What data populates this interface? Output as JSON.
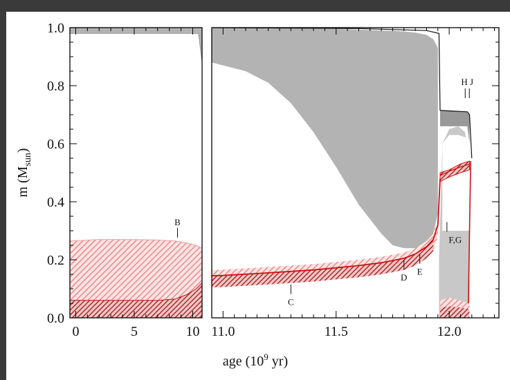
{
  "colors": {
    "background": "#3a3a3a",
    "convective_zone": "#b3b3b3",
    "burning_light": "#f0a5a5",
    "burning_dark": "#b01818",
    "core_line": "#cc1111",
    "frame": "#000000"
  },
  "chart_data": {
    "type": "area",
    "panels": [
      {
        "name": "left",
        "xlim": [
          -0.5,
          10.8
        ],
        "xticks": [
          0,
          5,
          10
        ],
        "xticklabels": [
          "0",
          "5",
          "10"
        ]
      },
      {
        "name": "right",
        "xlim": [
          10.95,
          12.22
        ],
        "xticks": [
          11.0,
          11.5,
          12.0
        ],
        "xticklabels": [
          "11.0",
          "11.5",
          "12.0"
        ]
      }
    ],
    "ylim": [
      0,
      1.0
    ],
    "yticks": [
      0.0,
      0.2,
      0.4,
      0.6,
      0.8,
      1.0
    ],
    "yticklabels": [
      "0.0",
      "0.2",
      "0.4",
      "0.6",
      "0.8",
      "1.0"
    ],
    "xlabel": {
      "pre": "age (10",
      "sup": "9",
      "post": " yr)"
    },
    "ylabel": {
      "pre": "m (M",
      "sub": "sun",
      "post": ")"
    },
    "annotations": [
      {
        "label": "B",
        "x": 8.7,
        "y": 0.31,
        "position": "above"
      },
      {
        "label": "C",
        "x": 11.3,
        "y": 0.115,
        "position": "below"
      },
      {
        "label": "D",
        "x": 11.8,
        "y": 0.2,
        "position": "below"
      },
      {
        "label": "E",
        "x": 11.87,
        "y": 0.22,
        "position": "below"
      },
      {
        "label": "F,G",
        "x": 11.99,
        "y": 0.33,
        "position": "below"
      },
      {
        "label": "H J",
        "x": 12.08,
        "y": 0.8,
        "position": "above"
      }
    ],
    "envelope_convection": {
      "x": [
        10.95,
        11.0,
        11.1,
        11.2,
        11.3,
        11.4,
        11.5,
        11.6,
        11.7,
        11.75,
        11.8,
        11.85,
        11.9,
        11.93,
        11.95
      ],
      "y_upper": [
        1.0,
        1.0,
        0.999,
        0.998,
        0.997,
        0.996,
        0.995,
        0.993,
        0.99,
        0.989,
        0.987,
        0.983,
        0.975,
        0.96,
        0.93
      ],
      "y_lower": [
        0.88,
        0.87,
        0.85,
        0.81,
        0.74,
        0.64,
        0.52,
        0.39,
        0.29,
        0.25,
        0.24,
        0.24,
        0.255,
        0.29,
        0.36
      ]
    },
    "core_boundary": {
      "x": [
        10.95,
        11.0,
        11.2,
        11.4,
        11.6,
        11.7,
        11.8,
        11.85,
        11.9,
        11.93,
        11.95,
        11.96
      ],
      "y": [
        0.145,
        0.146,
        0.155,
        0.165,
        0.18,
        0.19,
        0.205,
        0.22,
        0.245,
        0.27,
        0.32,
        0.48
      ]
    },
    "main_sequence_burning": {
      "x": [
        -0.5,
        2,
        5,
        7,
        8.5,
        9.5,
        10.3,
        10.8
      ],
      "y_upper": [
        0.265,
        0.27,
        0.27,
        0.268,
        0.265,
        0.258,
        0.25,
        0.24
      ],
      "y_lower_dark": [
        0.06,
        0.06,
        0.06,
        0.06,
        0.065,
        0.08,
        0.1,
        0.12
      ]
    },
    "surface_mass": {
      "left": {
        "x": [
          -0.5,
          10.5,
          10.8
        ],
        "y": [
          0.98,
          0.98,
          0.88
        ]
      },
      "right": {
        "x": [
          10.95,
          11.9,
          11.96,
          12.0,
          12.08,
          12.1
        ],
        "y": [
          1.0,
          0.99,
          0.715,
          0.715,
          0.71,
          0.55
        ]
      }
    }
  }
}
